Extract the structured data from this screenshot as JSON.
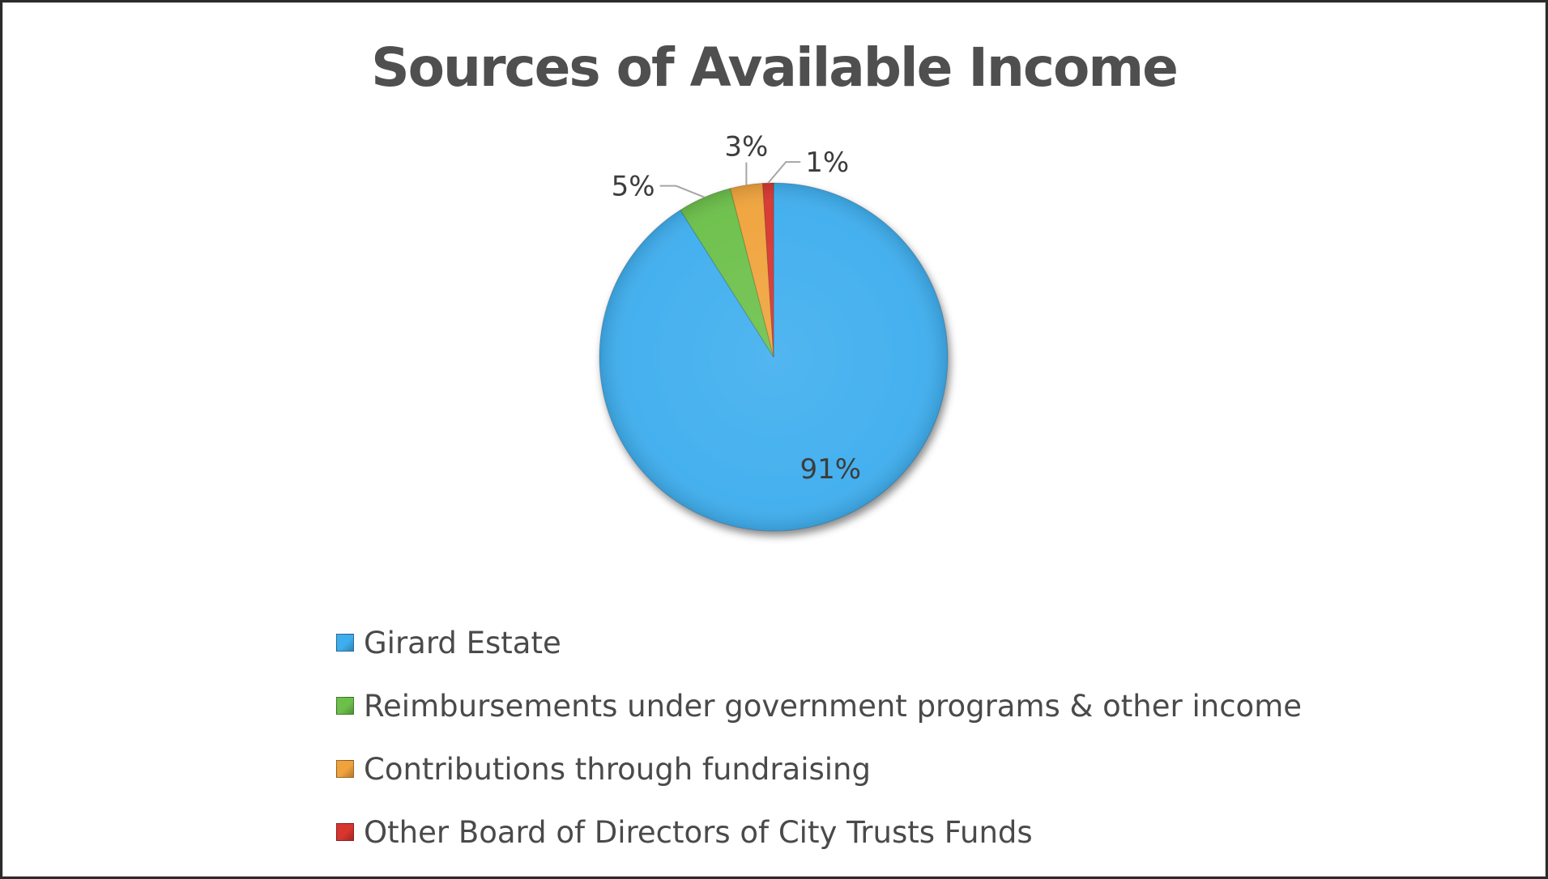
{
  "chart_data": {
    "type": "pie",
    "title": "Sources of Available Income",
    "slices": [
      {
        "name": "Girard Estate",
        "value": 91,
        "label": "91%",
        "color": "#3FAEEE"
      },
      {
        "name": "Reimbursements under government programs & other income",
        "value": 5,
        "label": "5%",
        "color": "#6CC04A"
      },
      {
        "name": "Contributions through fundraising",
        "value": 3,
        "label": "3%",
        "color": "#F0A33C"
      },
      {
        "name": "Other Board of Directors of City Trusts Funds",
        "value": 1,
        "label": "1%",
        "color": "#D8352F"
      }
    ],
    "legend_position": "bottom",
    "start": "12 o'clock, counter-clockwise"
  }
}
